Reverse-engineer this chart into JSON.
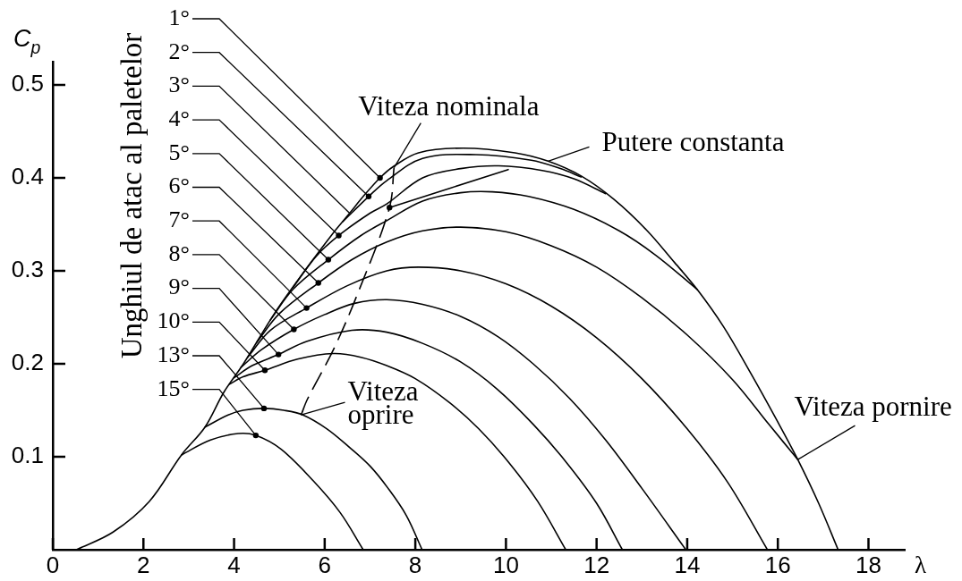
{
  "chart_data": {
    "type": "line",
    "ylabel": "C$_{p}$",
    "xlabel": "λ",
    "xlim": [
      0,
      18.8
    ],
    "ylim": [
      0,
      0.525
    ],
    "xticks": [
      0,
      2,
      4,
      6,
      8,
      10,
      12,
      14,
      16,
      18
    ],
    "yticks": [
      0.1,
      0.2,
      0.3,
      0.4,
      0.5
    ],
    "grid": false,
    "legend": false,
    "marker": "none",
    "line_style": "solid",
    "series": [
      {
        "color": "#000000",
        "x": [
          0.52,
          1.33,
          2.13,
          2.84,
          3.36,
          3.77,
          4.22,
          4.89,
          5.56,
          6.21,
          6.55,
          6.85,
          7.22,
          7.51,
          8.07,
          9.06,
          10.2,
          10.93,
          11.66,
          12.38,
          13.1,
          13.72,
          14.22,
          14.8,
          15.4,
          15.97,
          16.44,
          16.9,
          17.33
        ],
        "values": [
          0,
          0.019,
          0.052,
          0.102,
          0.132,
          0.169,
          0.201,
          0.254,
          0.3,
          0.342,
          0.362,
          0.38,
          0.4,
          0.412,
          0.427,
          0.432,
          0.427,
          0.418,
          0.402,
          0.377,
          0.344,
          0.309,
          0.28,
          0.24,
          0.19,
          0.14,
          0.097,
          0.05,
          0
        ]
      },
      {
        "color": "#000000",
        "x": [
          6.4,
          6.97,
          7.37,
          8.16,
          9.34,
          10.56,
          11.2,
          11.66
        ],
        "values": [
          0.353,
          0.38,
          0.397,
          0.421,
          0.425,
          0.419,
          0.41,
          0.401
        ]
      },
      {
        "color": "#000000",
        "x": [
          5.3,
          5.8,
          6.31,
          7.0,
          7.37,
          8.16,
          9.0,
          9.84,
          10.8,
          11.5,
          12.2
        ],
        "values": [
          0.282,
          0.315,
          0.338,
          0.362,
          0.372,
          0.4,
          0.41,
          0.413,
          0.408,
          0.399,
          0.383
        ]
      },
      {
        "color": "#000000",
        "x": [
          4.8,
          5.3,
          6.08,
          6.8,
          7.37,
          8.16,
          9.0,
          9.7,
          10.5,
          11.5,
          12.5,
          13.3,
          14.22
        ],
        "values": [
          0.247,
          0.28,
          0.312,
          0.338,
          0.354,
          0.375,
          0.384,
          0.385,
          0.38,
          0.366,
          0.343,
          0.317,
          0.28
        ]
      },
      {
        "color": "#000000",
        "x": [
          4.5,
          5.0,
          5.86,
          6.6,
          7.37,
          8.16,
          9.0,
          10.0,
          11.0,
          12.0,
          13.0,
          14.0,
          15.0,
          15.8,
          16.44
        ],
        "values": [
          0.223,
          0.254,
          0.287,
          0.312,
          0.331,
          0.343,
          0.347,
          0.342,
          0.327,
          0.304,
          0.271,
          0.231,
          0.183,
          0.135,
          0.097
        ]
      },
      {
        "color": "#000000",
        "x": [
          4.3,
          4.8,
          5.6,
          6.5,
          7.37,
          8.07,
          9.0,
          10.0,
          11.0,
          12.0,
          13.0,
          14.0,
          14.9,
          15.77
        ],
        "values": [
          0.207,
          0.236,
          0.26,
          0.284,
          0.3,
          0.304,
          0.3,
          0.286,
          0.262,
          0.228,
          0.184,
          0.13,
          0.072,
          0
        ]
      },
      {
        "color": "#000000",
        "x": [
          4.15,
          4.6,
          5.32,
          6.0,
          6.66,
          7.37,
          8.16,
          9.0,
          9.83,
          10.6,
          11.4,
          12.2,
          13.0,
          13.97
        ],
        "values": [
          0.196,
          0.215,
          0.237,
          0.253,
          0.265,
          0.269,
          0.264,
          0.251,
          0.229,
          0.2,
          0.163,
          0.118,
          0.066,
          0
        ]
      },
      {
        "color": "#000000",
        "x": [
          4.0,
          4.4,
          4.98,
          5.6,
          6.6,
          7.37,
          8.16,
          9.0,
          9.8,
          10.6,
          11.3,
          12.0,
          12.57
        ],
        "values": [
          0.185,
          0.198,
          0.21,
          0.224,
          0.236,
          0.234,
          0.222,
          0.202,
          0.173,
          0.135,
          0.096,
          0.05,
          0
        ]
      },
      {
        "color": "#000000",
        "x": [
          3.9,
          4.2,
          4.68,
          5.4,
          6.2,
          6.8,
          7.37,
          8.0,
          8.76,
          9.4,
          10.06,
          10.7,
          11.32
        ],
        "values": [
          0.178,
          0.186,
          0.193,
          0.205,
          0.211,
          0.207,
          0.198,
          0.184,
          0.158,
          0.13,
          0.094,
          0.052,
          0
        ]
      },
      {
        "color": "#000000",
        "x": [
          3.36,
          3.87,
          4.2,
          4.66,
          5.1,
          5.52,
          6.05,
          6.55,
          7.0,
          7.4,
          7.8,
          8.15
        ],
        "values": [
          0.132,
          0.145,
          0.15,
          0.152,
          0.15,
          0.145,
          0.13,
          0.11,
          0.09,
          0.066,
          0.037,
          0
        ]
      },
      {
        "color": "#000000",
        "x": [
          2.84,
          3.48,
          4.09,
          4.48,
          5.04,
          5.75,
          6.34,
          6.85
        ],
        "values": [
          0.102,
          0.118,
          0.125,
          0.123,
          0.108,
          0.074,
          0.04,
          0
        ]
      },
      {
        "color": "#000000",
        "line_style": "dashed",
        "x": [
          5.48,
          5.62,
          6.21,
          6.74,
          7.43,
          7.53
        ],
        "values": [
          0.145,
          0.162,
          0.217,
          0.277,
          0.368,
          0.411
        ]
      },
      {
        "color": "#000000",
        "x": [
          7.43,
          10.05
        ],
        "values": [
          0.368,
          0.409
        ]
      },
      {
        "type": "scatter",
        "marker": "circle",
        "color": "#000000",
        "x": [
          7.22,
          6.97,
          6.31,
          6.08,
          5.86,
          5.6,
          5.32,
          4.98,
          4.68,
          4.66,
          4.48,
          7.43
        ],
        "values": [
          0.4,
          0.38,
          0.338,
          0.312,
          0.287,
          0.26,
          0.237,
          0.21,
          0.193,
          0.152,
          0.123,
          0.368
        ]
      }
    ],
    "annotations": [
      {
        "text": "1°",
        "x": 7.22,
        "y": 0.4
      },
      {
        "text": "2°",
        "x": 6.97,
        "y": 0.38
      },
      {
        "text": "3°",
        "x": 6.55,
        "y": 0.362
      },
      {
        "text": "4°",
        "x": 6.31,
        "y": 0.338
      },
      {
        "text": "5°",
        "x": 6.08,
        "y": 0.312
      },
      {
        "text": "6°",
        "x": 5.86,
        "y": 0.287
      },
      {
        "text": "7°",
        "x": 5.6,
        "y": 0.26
      },
      {
        "text": "8°",
        "x": 5.32,
        "y": 0.237
      },
      {
        "text": "9°",
        "x": 4.98,
        "y": 0.21
      },
      {
        "text": "10°",
        "x": 4.68,
        "y": 0.193
      },
      {
        "text": "13°",
        "x": 4.66,
        "y": 0.152
      },
      {
        "text": "15°",
        "x": 4.48,
        "y": 0.123
      },
      "Unghiul de atac al paletelor",
      {
        "text": "Viteza nominala",
        "x": 7.53,
        "y": 0.411
      },
      {
        "text": "Putere constanta",
        "x": 10.93,
        "y": 0.418
      },
      {
        "text": "Viteza\noprire",
        "x": 5.48,
        "y": 0.145
      },
      {
        "text": "Viteza pornire",
        "x": 16.44,
        "y": 0.097
      }
    ]
  }
}
